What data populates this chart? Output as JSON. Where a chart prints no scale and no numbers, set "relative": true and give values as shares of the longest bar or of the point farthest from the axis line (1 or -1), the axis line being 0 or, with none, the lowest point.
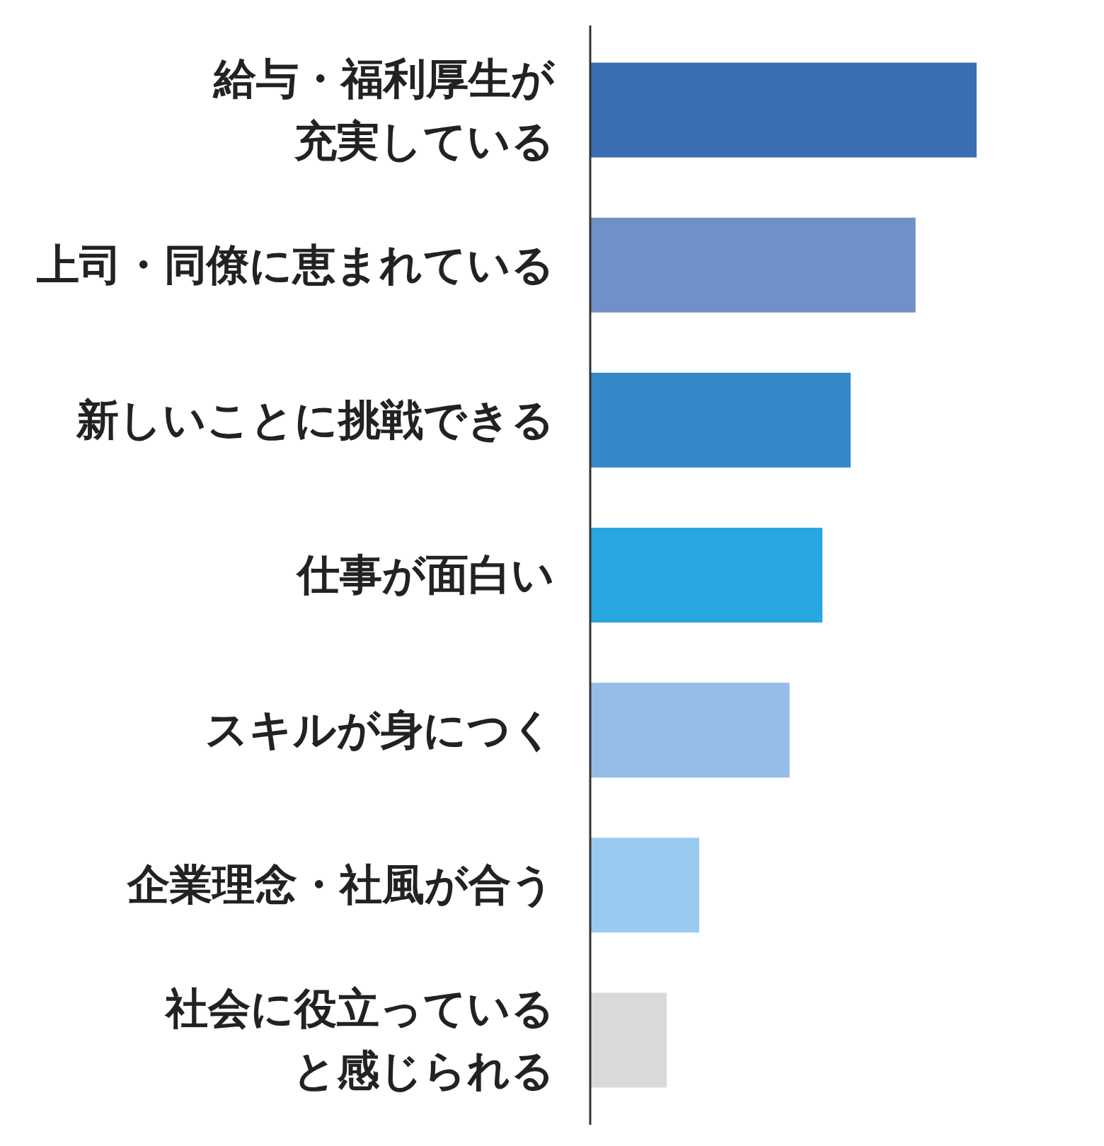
{
  "chart_data": {
    "type": "bar",
    "orientation": "horizontal",
    "relative": true,
    "categories": [
      "給与・福利厚生が充実している",
      "上司・同僚に恵まれている",
      "新しいことに挑戦できる",
      "仕事が面白い",
      "スキルが身につく",
      "企業理念・社風が合う",
      "社会に役立っていると感じられる"
    ],
    "values": [
      1,
      0.842,
      0.674,
      0.601,
      0.516,
      0.282,
      0.198
    ],
    "colors": [
      "#3b6eb0",
      "#7090c8",
      "#3589c9",
      "#29a6e0",
      "#95bde8",
      "#99cbf0",
      "#d9d9d9"
    ]
  }
}
